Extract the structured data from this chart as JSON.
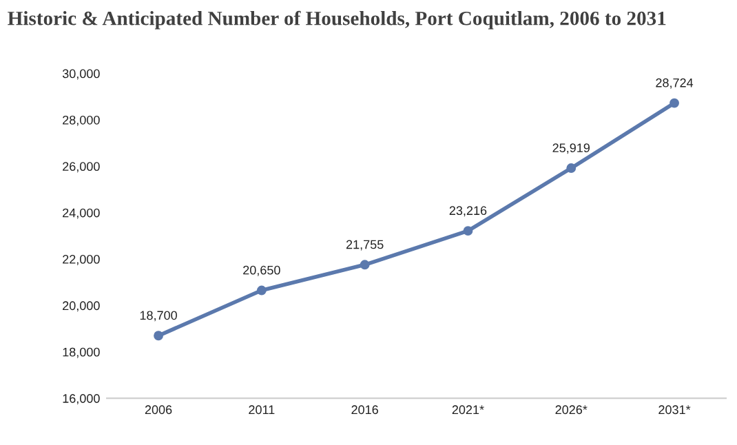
{
  "chart_data": {
    "type": "line",
    "title": "Historic & Anticipated Number of Households, Port Coquitlam, 2006 to 2031",
    "categories": [
      "2006",
      "2011",
      "2016",
      "2021*",
      "2026*",
      "2031*"
    ],
    "series": [
      {
        "color": "#5b79ad",
        "values": [
          18700,
          20650,
          21755,
          23216,
          25919,
          28724
        ]
      }
    ],
    "ylim": [
      16000,
      30000
    ],
    "yticks": [
      {
        "value": 16000,
        "label": "16,000"
      },
      {
        "value": 18000,
        "label": "18,000"
      },
      {
        "value": 20000,
        "label": "20,000"
      },
      {
        "value": 22000,
        "label": "22,000"
      },
      {
        "value": 24000,
        "label": "24,000"
      },
      {
        "value": 26000,
        "label": "26,000"
      },
      {
        "value": 28000,
        "label": "28,000"
      },
      {
        "value": 30000,
        "label": "30,000"
      }
    ],
    "value_labels": [
      [
        "18,700",
        "20,650",
        "21,755",
        "23,216",
        "25,919",
        "28,724"
      ]
    ],
    "marker": "circle",
    "line_style": "solid",
    "grid": false
  }
}
